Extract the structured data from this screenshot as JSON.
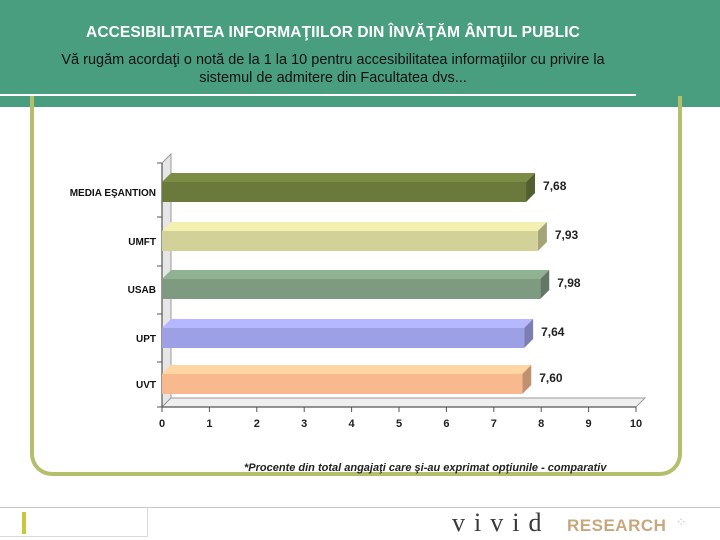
{
  "header": {
    "title": "ACCESIBILITATEA INFORMAŢIILOR DIN ÎNVĂŢĂM ÂNTUL PUBLIC",
    "subtitle_line1": "Vă rugăm acordaţi o notă de la 1 la 10 pentru accesibilitatea informaţiilor cu privire la",
    "subtitle_line2": "sistemul de admitere din Facultatea dvs..."
  },
  "chart_data": {
    "type": "bar",
    "orientation": "horizontal",
    "categories": [
      "MEDIA EŞANTION",
      "UMFT",
      "USAB",
      "UPT",
      "UVT"
    ],
    "values": [
      7.68,
      7.93,
      7.98,
      7.64,
      7.6
    ],
    "value_labels": [
      "7,68",
      "7,93",
      "7,98",
      "7,64",
      "7,60"
    ],
    "xlim": [
      0,
      10
    ],
    "x_ticks": [
      "0",
      "1",
      "2",
      "3",
      "4",
      "5",
      "6",
      "7",
      "8",
      "9",
      "10"
    ],
    "grid": false,
    "bar_colors": [
      "#6b7a3c",
      "#d3d19a",
      "#7e9a80",
      "#9ea0e6",
      "#f7b98d"
    ]
  },
  "footnote": "*Procente din total angajaţi care şi-au exprimat opţiunile - comparativ",
  "footer": {
    "logo_text": "vivid",
    "logo_research": "RESEARCH"
  }
}
